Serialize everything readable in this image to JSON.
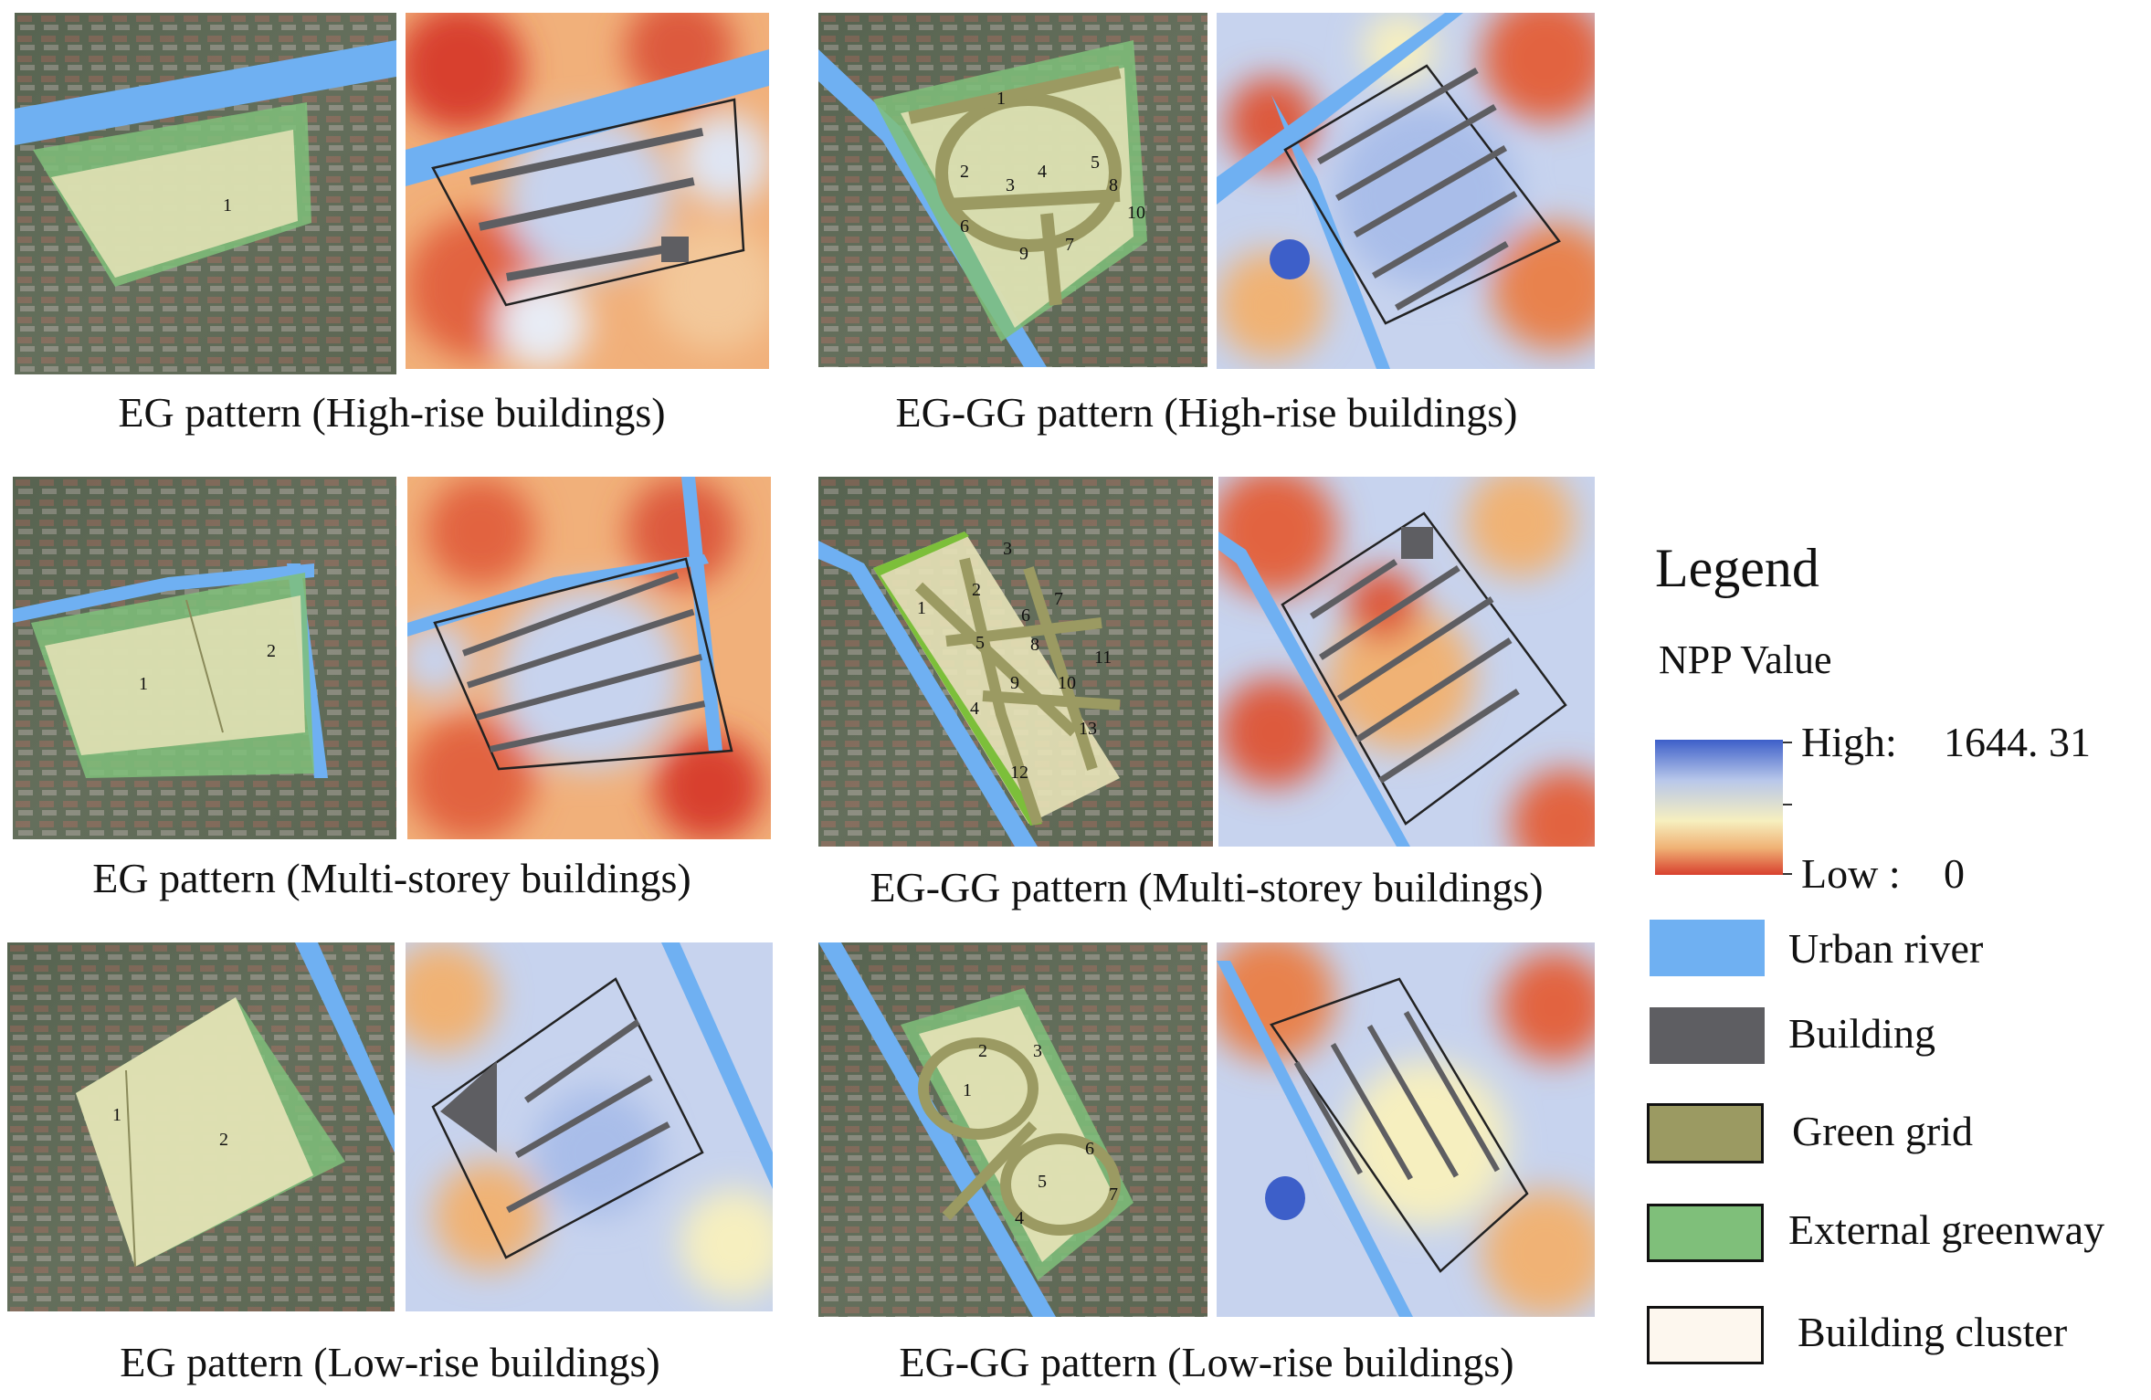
{
  "captions": [
    "EG pattern (High-rise buildings)",
    "EG-GG pattern (High-rise buildings)",
    "EG pattern (Multi-storey buildings)",
    "EG-GG pattern (Multi-storey buildings)",
    "EG pattern (Low-rise buildings)",
    "EG-GG pattern (Low-rise buildings)"
  ],
  "labels": {
    "eg_high": [
      "1"
    ],
    "eggg_high": [
      "1",
      "2",
      "3",
      "4",
      "5",
      "6",
      "7",
      "8",
      "9",
      "10"
    ],
    "eg_multi": [
      "1",
      "2"
    ],
    "eggg_multi": [
      "1",
      "2",
      "3",
      "4",
      "5",
      "6",
      "7",
      "8",
      "9",
      "10",
      "11",
      "12",
      "13"
    ],
    "eg_low": [
      "1",
      "2"
    ],
    "eggg_low": [
      "1",
      "2",
      "3",
      "4",
      "5",
      "6",
      "7"
    ]
  },
  "legend": {
    "title": "Legend",
    "npp_title": "NPP Value",
    "high_label": "High:",
    "high_value": "1644. 31",
    "low_label": "Low :",
    "low_value": "0",
    "items": [
      {
        "label": "Urban river",
        "color": "#6fb0f2"
      },
      {
        "label": "Building",
        "color": "#5e5e62"
      },
      {
        "label": "Green grid",
        "color": "#9b9a62"
      },
      {
        "label": "External greenway",
        "color": "#7fbf7a"
      },
      {
        "label": "Building cluster",
        "color": "#fdf7ee"
      }
    ],
    "gradient": [
      "#3d5fc9",
      "#b8c7ea",
      "#f6efbf",
      "#f0b275",
      "#d8402e"
    ]
  }
}
